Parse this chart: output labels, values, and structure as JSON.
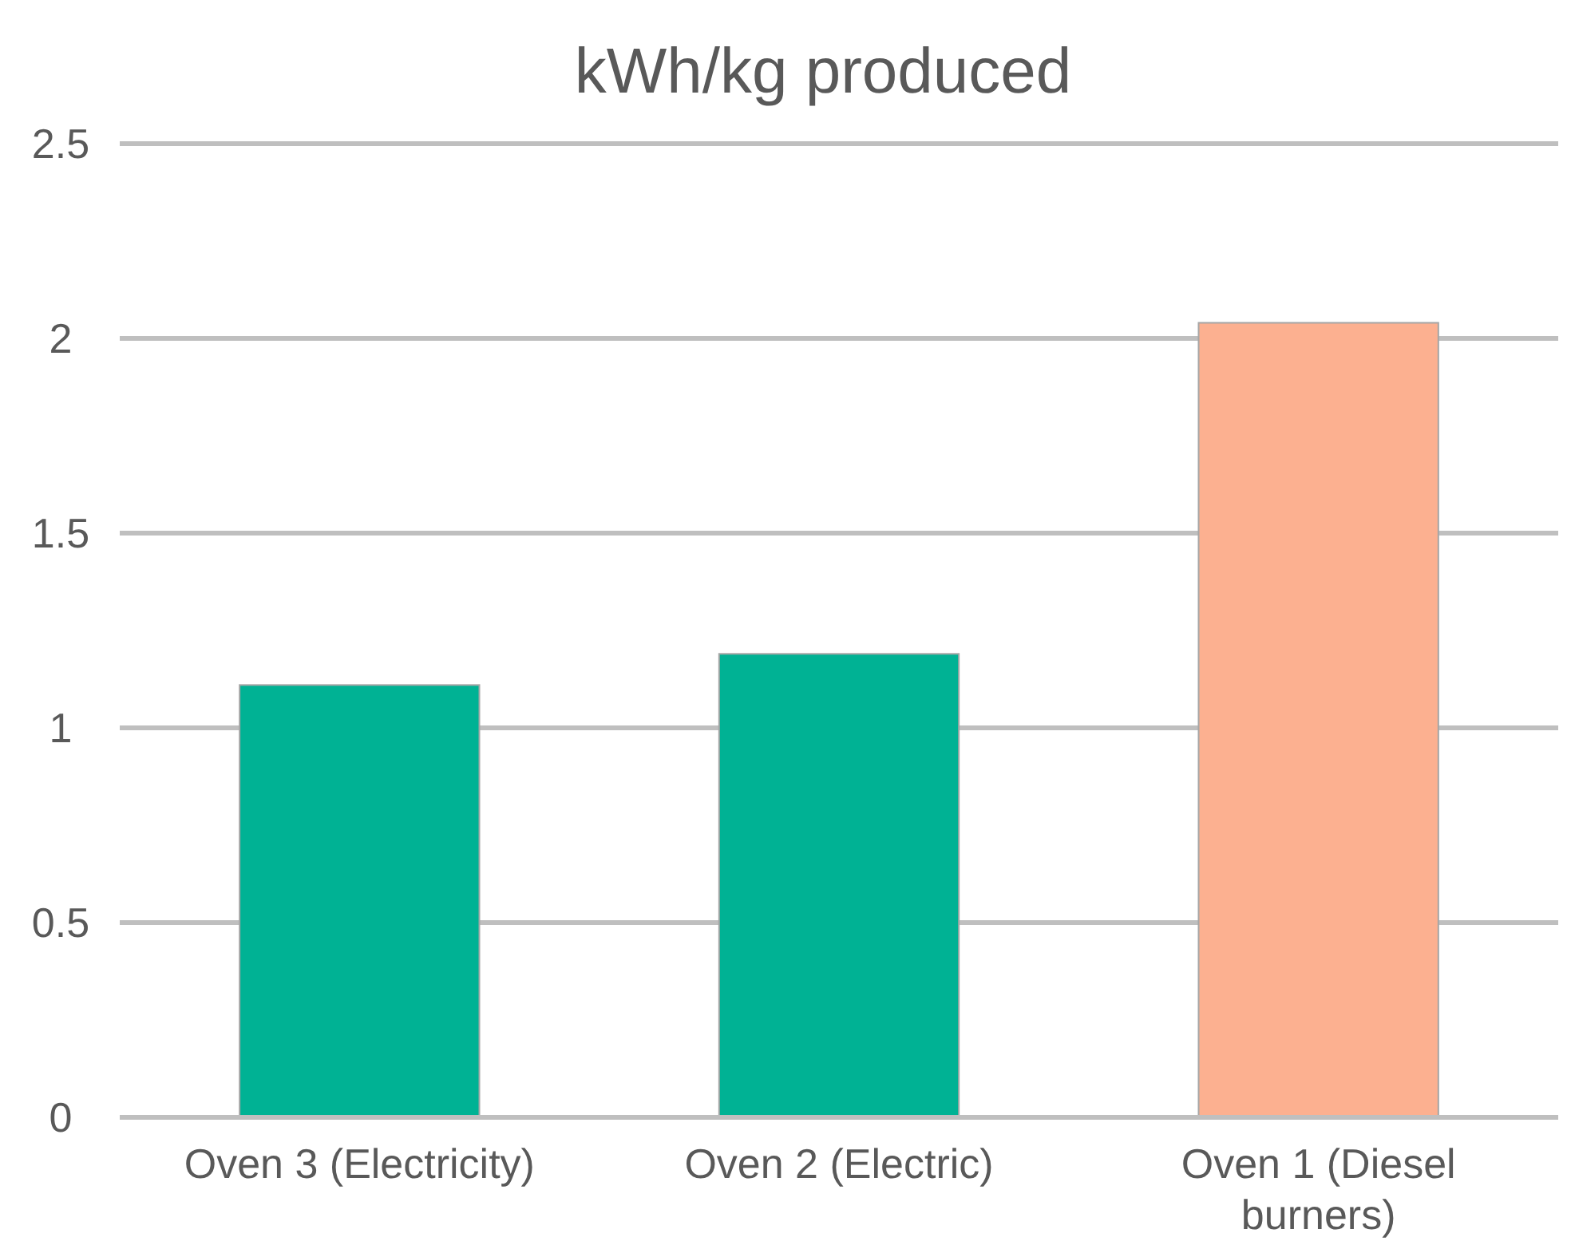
{
  "chart_data": {
    "type": "bar",
    "title": "kWh/kg produced",
    "categories": [
      "Oven 3 (Electricity)",
      "Oven 2 (Electric)",
      "Oven 1 (Diesel burners)"
    ],
    "values": [
      1.11,
      1.19,
      2.04
    ],
    "colors": [
      "#00b294",
      "#00b294",
      "#fcb090"
    ],
    "ylim": [
      0,
      2.5
    ],
    "yticks": [
      0,
      0.5,
      1,
      1.5,
      2,
      2.5
    ],
    "grid": "y"
  }
}
